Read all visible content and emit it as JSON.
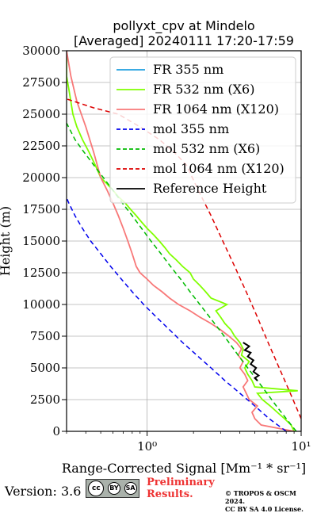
{
  "chart_data": {
    "type": "line",
    "title": "pollyxt_cpv at Mindelo",
    "subtitle": "[Averaged] 20240111 17:20-17:59",
    "xlabel": "Range-Corrected Signal [Mm⁻¹ * sr⁻¹]",
    "ylabel": "Height (m)",
    "x_scale": "log",
    "xlim": [
      0.3,
      10
    ],
    "ylim": [
      0,
      30000
    ],
    "x_major_ticks": [
      1,
      10
    ],
    "x_tick_labels": [
      "10⁰",
      "10¹"
    ],
    "y_ticks": [
      0,
      2500,
      5000,
      7500,
      10000,
      12500,
      15000,
      17500,
      20000,
      22500,
      25000,
      27500,
      30000
    ],
    "y_tick_labels": [
      "0",
      "2500",
      "5000",
      "7500",
      "10000",
      "12500",
      "15000",
      "17500",
      "20000",
      "22500",
      "25000",
      "27500",
      "30000"
    ],
    "grid": true,
    "legend_position": "top-right",
    "series": [
      {
        "name": "FR 355 nm",
        "color": "#1f9fdf",
        "style": "solid",
        "points": []
      },
      {
        "name": "FR 532 nm (X6)",
        "color": "#80ff00",
        "style": "solid",
        "points": [
          [
            9.0,
            0
          ],
          [
            8.6,
            500
          ],
          [
            7.8,
            1000
          ],
          [
            7.0,
            1500
          ],
          [
            6.3,
            2000
          ],
          [
            5.6,
            2500
          ],
          [
            5.2,
            3000
          ],
          [
            9.5,
            3200
          ],
          [
            5.0,
            3500
          ],
          [
            4.8,
            4000
          ],
          [
            4.5,
            4500
          ],
          [
            4.3,
            5000
          ],
          [
            4.6,
            5500
          ],
          [
            4.1,
            6000
          ],
          [
            4.2,
            6500
          ],
          [
            4.0,
            7000
          ],
          [
            3.7,
            7500
          ],
          [
            3.5,
            8000
          ],
          [
            3.2,
            8500
          ],
          [
            3.0,
            9000
          ],
          [
            2.8,
            9500
          ],
          [
            3.3,
            10000
          ],
          [
            2.6,
            10500
          ],
          [
            2.4,
            11000
          ],
          [
            2.2,
            11500
          ],
          [
            2.0,
            12000
          ],
          [
            1.9,
            12500
          ],
          [
            1.7,
            13000
          ],
          [
            1.55,
            13500
          ],
          [
            1.4,
            14000
          ],
          [
            1.3,
            14500
          ],
          [
            1.2,
            15000
          ],
          [
            1.1,
            15500
          ],
          [
            1.0,
            16000
          ],
          [
            0.92,
            16500
          ],
          [
            0.85,
            17000
          ],
          [
            0.78,
            17500
          ],
          [
            0.72,
            18000
          ],
          [
            0.65,
            18500
          ],
          [
            0.6,
            19000
          ],
          [
            0.55,
            19500
          ],
          [
            0.5,
            20000
          ],
          [
            0.46,
            21000
          ],
          [
            0.42,
            22000
          ],
          [
            0.38,
            23000
          ],
          [
            0.35,
            24000
          ],
          [
            0.33,
            25000
          ],
          [
            0.32,
            26000
          ],
          [
            0.31,
            27000
          ],
          [
            0.3,
            28000
          ],
          [
            0.3,
            29000
          ],
          [
            0.3,
            30000
          ]
        ]
      },
      {
        "name": "FR 1064 nm (X120)",
        "color": "#f87878",
        "style": "solid",
        "points": [
          [
            9.0,
            0
          ],
          [
            5.5,
            500
          ],
          [
            5.0,
            1000
          ],
          [
            4.8,
            1500
          ],
          [
            5.2,
            2000
          ],
          [
            4.6,
            2500
          ],
          [
            4.4,
            3000
          ],
          [
            4.2,
            3500
          ],
          [
            4.5,
            4000
          ],
          [
            4.3,
            4500
          ],
          [
            4.0,
            5000
          ],
          [
            4.2,
            5500
          ],
          [
            3.9,
            6000
          ],
          [
            4.1,
            6500
          ],
          [
            3.8,
            7000
          ],
          [
            3.4,
            7500
          ],
          [
            3.0,
            8000
          ],
          [
            2.6,
            8500
          ],
          [
            2.2,
            9000
          ],
          [
            1.9,
            9500
          ],
          [
            1.6,
            10000
          ],
          [
            1.4,
            10500
          ],
          [
            1.25,
            11000
          ],
          [
            1.1,
            11500
          ],
          [
            1.0,
            12000
          ],
          [
            0.9,
            12500
          ],
          [
            0.85,
            13000
          ],
          [
            0.8,
            14000
          ],
          [
            0.75,
            15000
          ],
          [
            0.7,
            16000
          ],
          [
            0.65,
            17000
          ],
          [
            0.6,
            18000
          ],
          [
            0.55,
            19000
          ],
          [
            0.5,
            20000
          ],
          [
            0.45,
            22000
          ],
          [
            0.4,
            24000
          ],
          [
            0.35,
            26000
          ],
          [
            0.32,
            28000
          ],
          [
            0.3,
            30000
          ]
        ]
      },
      {
        "name": "mol 355 nm",
        "color": "#0000ee",
        "style": "dashed",
        "points": [
          [
            8.0,
            0
          ],
          [
            6.2,
            1000
          ],
          [
            5.0,
            2000
          ],
          [
            4.0,
            3000
          ],
          [
            3.2,
            4000
          ],
          [
            2.6,
            5000
          ],
          [
            2.1,
            6000
          ],
          [
            1.7,
            7000
          ],
          [
            1.4,
            8000
          ],
          [
            1.15,
            9000
          ],
          [
            0.95,
            10000
          ],
          [
            0.8,
            11000
          ],
          [
            0.68,
            12000
          ],
          [
            0.58,
            13000
          ],
          [
            0.5,
            14000
          ],
          [
            0.43,
            15000
          ],
          [
            0.38,
            16000
          ],
          [
            0.34,
            17000
          ],
          [
            0.31,
            18000
          ],
          [
            0.3,
            18400
          ]
        ]
      },
      {
        "name": "mol 532 nm (X6)",
        "color": "#00bb00",
        "style": "dashed",
        "points": [
          [
            9.3,
            0
          ],
          [
            8.0,
            1000
          ],
          [
            6.9,
            2000
          ],
          [
            6.0,
            3000
          ],
          [
            5.2,
            4000
          ],
          [
            4.5,
            5000
          ],
          [
            3.9,
            6000
          ],
          [
            3.4,
            7000
          ],
          [
            2.95,
            8000
          ],
          [
            2.55,
            9000
          ],
          [
            2.2,
            10000
          ],
          [
            1.9,
            11000
          ],
          [
            1.65,
            12000
          ],
          [
            1.42,
            13000
          ],
          [
            1.23,
            14000
          ],
          [
            1.06,
            15000
          ],
          [
            0.92,
            16000
          ],
          [
            0.8,
            17000
          ],
          [
            0.69,
            18000
          ],
          [
            0.6,
            19000
          ],
          [
            0.52,
            20000
          ],
          [
            0.45,
            21000
          ],
          [
            0.39,
            22000
          ],
          [
            0.34,
            23000
          ],
          [
            0.3,
            24300
          ]
        ]
      },
      {
        "name": "mol 1064 nm (X120)",
        "color": "#dd0000",
        "style": "dashed",
        "points": [
          [
            10.0,
            1000
          ],
          [
            8.5,
            3000
          ],
          [
            7.2,
            5000
          ],
          [
            6.1,
            7000
          ],
          [
            5.2,
            9000
          ],
          [
            4.4,
            11000
          ],
          [
            3.7,
            13000
          ],
          [
            3.1,
            15000
          ],
          [
            2.6,
            17000
          ],
          [
            2.15,
            19000
          ],
          [
            1.8,
            21000
          ],
          [
            1.5,
            22000
          ],
          [
            1.2,
            23000
          ],
          [
            0.9,
            24000
          ],
          [
            0.65,
            25000
          ],
          [
            0.45,
            25500
          ],
          [
            0.3,
            26200
          ]
        ]
      },
      {
        "name": "Reference Height",
        "color": "#000000",
        "style": "solid",
        "points": [
          [
            5.2,
            4000
          ],
          [
            5.0,
            4200
          ],
          [
            5.3,
            4400
          ],
          [
            4.9,
            4700
          ],
          [
            5.1,
            5000
          ],
          [
            4.7,
            5300
          ],
          [
            4.9,
            5600
          ],
          [
            4.5,
            5900
          ],
          [
            4.7,
            6200
          ],
          [
            4.3,
            6400
          ],
          [
            4.6,
            6700
          ],
          [
            4.2,
            7000
          ]
        ]
      }
    ]
  },
  "footer": {
    "version": "Version: 3.6",
    "cc_label": "cc",
    "cc_by": "BY",
    "cc_sa": "SA",
    "preliminary_line1": "Preliminary",
    "preliminary_line2": "Results.",
    "copyright_line1": "© TROPOS & OSCM 2024.",
    "copyright_line2": "CC BY SA 4.0 License."
  }
}
